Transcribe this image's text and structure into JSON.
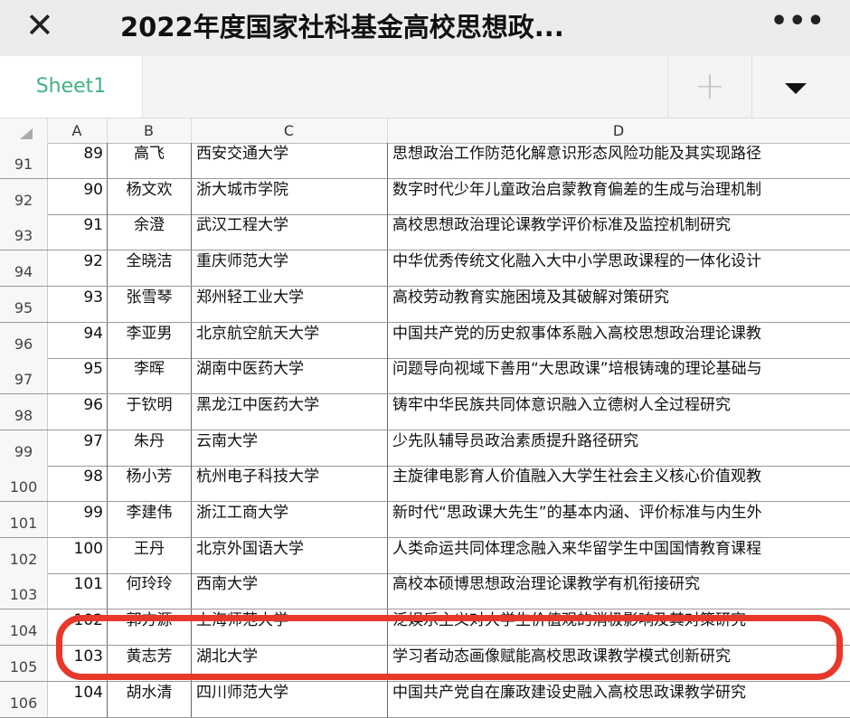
{
  "header": {
    "title": "2022年度国家社科基金高校思想政...",
    "close_icon": "close-icon",
    "more_icon": "more-icon"
  },
  "tabs": {
    "sheet": "Sheet1",
    "add_icon": "plus-icon",
    "menu_icon": "dropdown-triangle-icon"
  },
  "columns": [
    "A",
    "B",
    "C",
    "D"
  ],
  "rows": [
    {
      "n": "91",
      "a": "89",
      "b": "高飞",
      "c": "西安交通大学",
      "d": "思想政治工作防范化解意识形态风险功能及其实现路径"
    },
    {
      "n": "92",
      "a": "90",
      "b": "杨文欢",
      "c": "浙大城市学院",
      "d": "数字时代少年儿童政治启蒙教育偏差的生成与治理机制"
    },
    {
      "n": "93",
      "a": "91",
      "b": "余澄",
      "c": "武汉工程大学",
      "d": "高校思想政治理论课教学评价标准及监控机制研究"
    },
    {
      "n": "94",
      "a": "92",
      "b": "全晓洁",
      "c": "重庆师范大学",
      "d": "中华优秀传统文化融入大中小学思政课程的一体化设计"
    },
    {
      "n": "95",
      "a": "93",
      "b": "张雪琴",
      "c": "郑州轻工业大学",
      "d": "高校劳动教育实施困境及其破解对策研究"
    },
    {
      "n": "96",
      "a": "94",
      "b": "李亚男",
      "c": "北京航空航天大学",
      "d": "中国共产党的历史叙事体系融入高校思想政治理论课教"
    },
    {
      "n": "97",
      "a": "95",
      "b": "李晖",
      "c": "湖南中医药大学",
      "d": "问题导向视域下善用“大思政课”培根铸魂的理论基础与"
    },
    {
      "n": "98",
      "a": "96",
      "b": "于钦明",
      "c": "黑龙江中医药大学",
      "d": "铸牢中华民族共同体意识融入立德树人全过程研究"
    },
    {
      "n": "99",
      "a": "97",
      "b": "朱丹",
      "c": "云南大学",
      "d": "少先队辅导员政治素质提升路径研究"
    },
    {
      "n": "100",
      "a": "98",
      "b": "杨小芳",
      "c": "杭州电子科技大学",
      "d": "主旋律电影育人价值融入大学生社会主义核心价值观教"
    },
    {
      "n": "101",
      "a": "99",
      "b": "李建伟",
      "c": "浙江工商大学",
      "d": "新时代“思政课大先生”的基本内涵、评价标准与内生外"
    },
    {
      "n": "102",
      "a": "100",
      "b": "王丹",
      "c": "北京外国语大学",
      "d": "人类命运共同体理念融入来华留学生中国国情教育课程"
    },
    {
      "n": "103",
      "a": "101",
      "b": "何玲玲",
      "c": "西南大学",
      "d": "高校本硕博思想政治理论课教学有机衔接研究"
    },
    {
      "n": "104",
      "a": "102",
      "b": "郭方源",
      "c": "上海师范大学",
      "d": "泛娱乐主义对大学生价值观的消极影响及其对策研究"
    },
    {
      "n": "105",
      "a": "103",
      "b": "黄志芳",
      "c": "湖北大学",
      "d": "学习者动态画像赋能高校思政课教学模式创新研究"
    },
    {
      "n": "106",
      "a": "104",
      "b": "胡水清",
      "c": "四川师范大学",
      "d": "中国共产党自在廉政建设史融入高校思政课教学研究"
    }
  ],
  "highlight_color": "#e8382a",
  "accent_color": "#3fb483"
}
